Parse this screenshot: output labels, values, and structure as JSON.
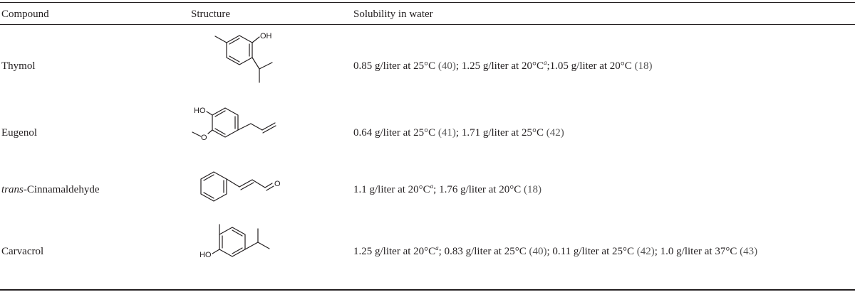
{
  "table": {
    "headers": {
      "compound": "Compound",
      "structure": "Structure",
      "solubility": "Solubility in water"
    },
    "rows": [
      {
        "name": "Thymol",
        "structure_labels": [
          "OH"
        ],
        "solubility": {
          "p1": "0.85 g/liter at 25°C ",
          "r1": "(40)",
          "p2": "; 1.25 g/liter at 20°C",
          "sup": "a",
          "p3": ";1.05 g/liter at 20°C ",
          "r2": "(18)"
        }
      },
      {
        "name": "Eugenol",
        "structure_labels": [
          "HO",
          "O"
        ],
        "solubility": {
          "p1": "0.64 g/liter at 25°C ",
          "r1": "(41)",
          "p2": "; 1.71 g/liter at 25°C ",
          "r2": "(42)"
        }
      },
      {
        "name_italic": "trans",
        "name_rest": "-Cinnamaldehyde",
        "structure_labels": [
          "O"
        ],
        "solubility": {
          "p1": "1.1 g/liter at 20°C",
          "sup": "a",
          "p2": "; 1.76 g/liter at 20°C ",
          "r1": "(18)"
        }
      },
      {
        "name": "Carvacrol",
        "structure_labels": [
          "HO"
        ],
        "solubility": {
          "p1": "1.25 g/liter at 20°C",
          "sup": "a",
          "p2": "; 0.83 g/liter at 25°C ",
          "r1": "(40)",
          "p3": "; 0.11 g/liter at 25°C ",
          "r2": "(42)",
          "p4": "; 1.0 g/liter at 37°C ",
          "r3": "(43)"
        }
      }
    ]
  }
}
